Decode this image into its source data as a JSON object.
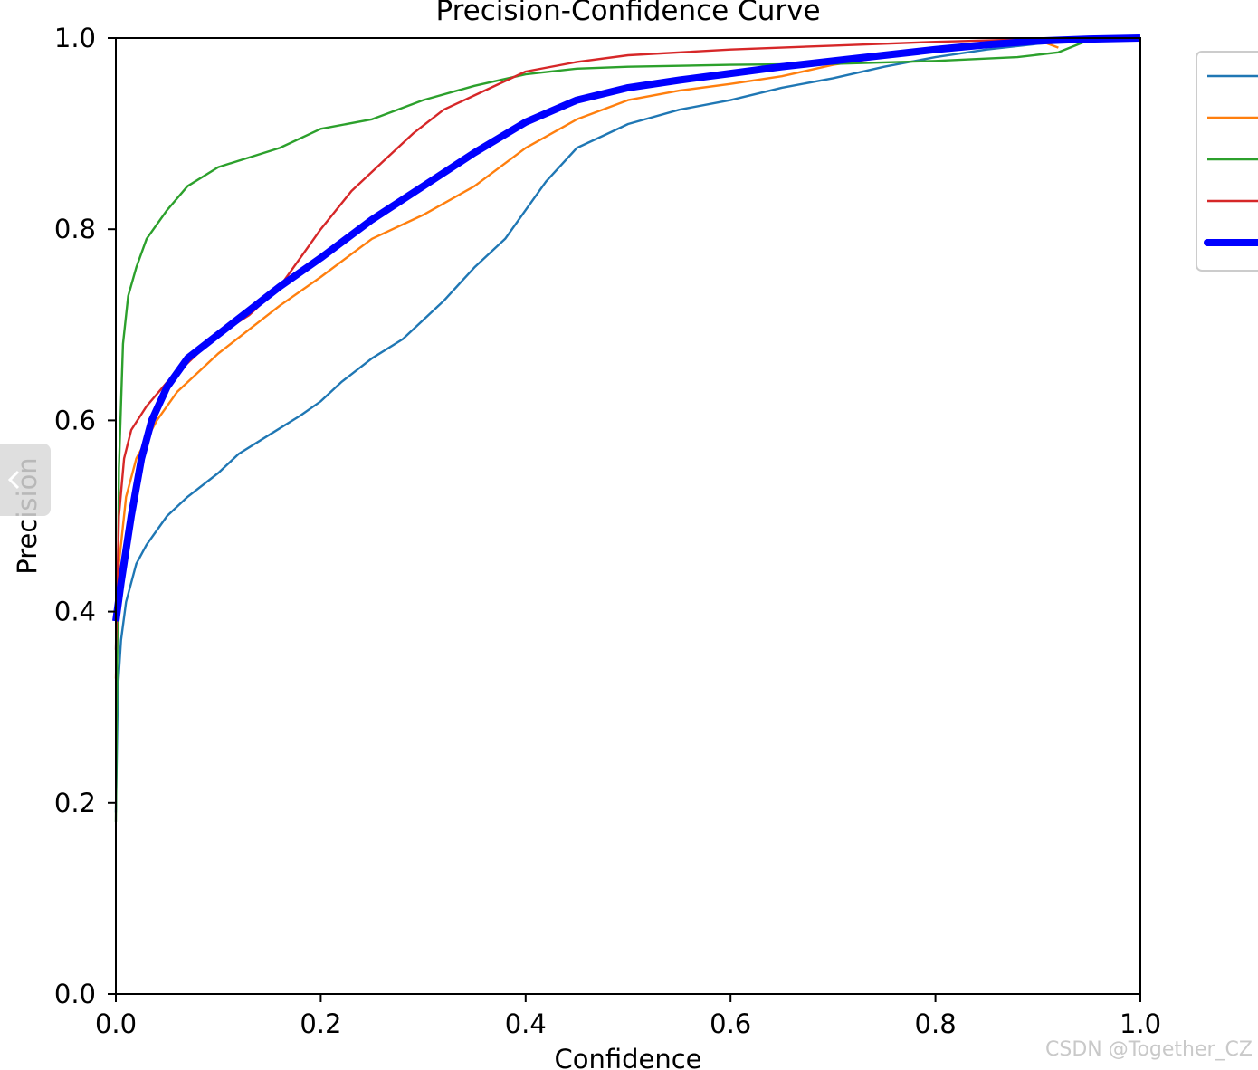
{
  "chart_data": {
    "type": "line",
    "title": "Precision-Confidence Curve",
    "xlabel": "Confidence",
    "ylabel": "Precision",
    "xlim": [
      0,
      1
    ],
    "ylim": [
      0,
      1
    ],
    "xticks": [
      "0.0",
      "0.2",
      "0.4",
      "0.6",
      "0.8",
      "1.0"
    ],
    "yticks": [
      "0.0",
      "0.2",
      "0.4",
      "0.6",
      "0.8",
      "1.0"
    ],
    "grid": false,
    "legend_placement": "right, outside plot (cropped)",
    "series": [
      {
        "color": "#1f77b4",
        "thick": false,
        "points": [
          [
            0.0,
            0.19
          ],
          [
            0.002,
            0.32
          ],
          [
            0.005,
            0.37
          ],
          [
            0.01,
            0.41
          ],
          [
            0.02,
            0.45
          ],
          [
            0.03,
            0.47
          ],
          [
            0.05,
            0.5
          ],
          [
            0.07,
            0.52
          ],
          [
            0.1,
            0.545
          ],
          [
            0.12,
            0.565
          ],
          [
            0.15,
            0.585
          ],
          [
            0.18,
            0.605
          ],
          [
            0.2,
            0.62
          ],
          [
            0.22,
            0.64
          ],
          [
            0.25,
            0.665
          ],
          [
            0.28,
            0.685
          ],
          [
            0.3,
            0.705
          ],
          [
            0.32,
            0.725
          ],
          [
            0.35,
            0.76
          ],
          [
            0.38,
            0.79
          ],
          [
            0.4,
            0.82
          ],
          [
            0.42,
            0.85
          ],
          [
            0.45,
            0.885
          ],
          [
            0.48,
            0.9
          ],
          [
            0.5,
            0.91
          ],
          [
            0.55,
            0.925
          ],
          [
            0.6,
            0.935
          ],
          [
            0.65,
            0.948
          ],
          [
            0.7,
            0.958
          ],
          [
            0.75,
            0.97
          ],
          [
            0.8,
            0.98
          ],
          [
            0.85,
            0.988
          ],
          [
            0.9,
            0.994
          ],
          [
            0.95,
            0.998
          ],
          [
            1.0,
            1.0
          ]
        ]
      },
      {
        "color": "#ff7f0e",
        "thick": false,
        "points": [
          [
            0.0,
            0.33
          ],
          [
            0.003,
            0.45
          ],
          [
            0.01,
            0.52
          ],
          [
            0.02,
            0.56
          ],
          [
            0.04,
            0.6
          ],
          [
            0.06,
            0.63
          ],
          [
            0.08,
            0.65
          ],
          [
            0.1,
            0.67
          ],
          [
            0.13,
            0.695
          ],
          [
            0.16,
            0.72
          ],
          [
            0.2,
            0.75
          ],
          [
            0.25,
            0.79
          ],
          [
            0.3,
            0.815
          ],
          [
            0.35,
            0.845
          ],
          [
            0.4,
            0.885
          ],
          [
            0.45,
            0.915
          ],
          [
            0.5,
            0.935
          ],
          [
            0.55,
            0.945
          ],
          [
            0.6,
            0.952
          ],
          [
            0.65,
            0.96
          ],
          [
            0.7,
            0.972
          ],
          [
            0.75,
            0.98
          ],
          [
            0.8,
            0.988
          ],
          [
            0.85,
            0.995
          ],
          [
            0.9,
            0.998
          ],
          [
            0.92,
            0.99
          ]
        ]
      },
      {
        "color": "#2ca02c",
        "thick": false,
        "points": [
          [
            0.0,
            0.18
          ],
          [
            0.003,
            0.55
          ],
          [
            0.007,
            0.68
          ],
          [
            0.012,
            0.73
          ],
          [
            0.02,
            0.76
          ],
          [
            0.03,
            0.79
          ],
          [
            0.05,
            0.82
          ],
          [
            0.07,
            0.845
          ],
          [
            0.1,
            0.865
          ],
          [
            0.13,
            0.875
          ],
          [
            0.16,
            0.885
          ],
          [
            0.2,
            0.905
          ],
          [
            0.25,
            0.915
          ],
          [
            0.3,
            0.935
          ],
          [
            0.35,
            0.95
          ],
          [
            0.4,
            0.962
          ],
          [
            0.45,
            0.968
          ],
          [
            0.5,
            0.97
          ],
          [
            0.6,
            0.972
          ],
          [
            0.7,
            0.973
          ],
          [
            0.8,
            0.976
          ],
          [
            0.88,
            0.98
          ],
          [
            0.92,
            0.985
          ],
          [
            0.95,
            0.998
          ],
          [
            1.0,
            1.0
          ]
        ]
      },
      {
        "color": "#d62728",
        "thick": false,
        "points": [
          [
            0.0,
            0.36
          ],
          [
            0.003,
            0.5
          ],
          [
            0.008,
            0.56
          ],
          [
            0.015,
            0.59
          ],
          [
            0.03,
            0.615
          ],
          [
            0.05,
            0.64
          ],
          [
            0.08,
            0.67
          ],
          [
            0.1,
            0.69
          ],
          [
            0.13,
            0.71
          ],
          [
            0.16,
            0.74
          ],
          [
            0.18,
            0.77
          ],
          [
            0.2,
            0.8
          ],
          [
            0.23,
            0.84
          ],
          [
            0.26,
            0.87
          ],
          [
            0.29,
            0.9
          ],
          [
            0.32,
            0.925
          ],
          [
            0.35,
            0.94
          ],
          [
            0.4,
            0.965
          ],
          [
            0.45,
            0.975
          ],
          [
            0.5,
            0.982
          ],
          [
            0.6,
            0.988
          ],
          [
            0.7,
            0.992
          ],
          [
            0.8,
            0.996
          ],
          [
            0.9,
            0.999
          ],
          [
            1.0,
            1.0
          ]
        ]
      },
      {
        "color": "#0000ff",
        "thick": true,
        "points": [
          [
            0.0,
            0.39
          ],
          [
            0.005,
            0.43
          ],
          [
            0.015,
            0.5
          ],
          [
            0.025,
            0.56
          ],
          [
            0.035,
            0.6
          ],
          [
            0.05,
            0.635
          ],
          [
            0.07,
            0.665
          ],
          [
            0.1,
            0.69
          ],
          [
            0.13,
            0.715
          ],
          [
            0.16,
            0.74
          ],
          [
            0.2,
            0.77
          ],
          [
            0.25,
            0.81
          ],
          [
            0.3,
            0.845
          ],
          [
            0.35,
            0.88
          ],
          [
            0.4,
            0.912
          ],
          [
            0.45,
            0.935
          ],
          [
            0.5,
            0.948
          ],
          [
            0.55,
            0.956
          ],
          [
            0.6,
            0.963
          ],
          [
            0.65,
            0.97
          ],
          [
            0.7,
            0.976
          ],
          [
            0.75,
            0.982
          ],
          [
            0.8,
            0.988
          ],
          [
            0.85,
            0.993
          ],
          [
            0.9,
            0.997
          ],
          [
            0.95,
            0.999
          ],
          [
            1.0,
            1.0
          ]
        ]
      }
    ]
  },
  "watermark": "CSDN @Together_CZ"
}
